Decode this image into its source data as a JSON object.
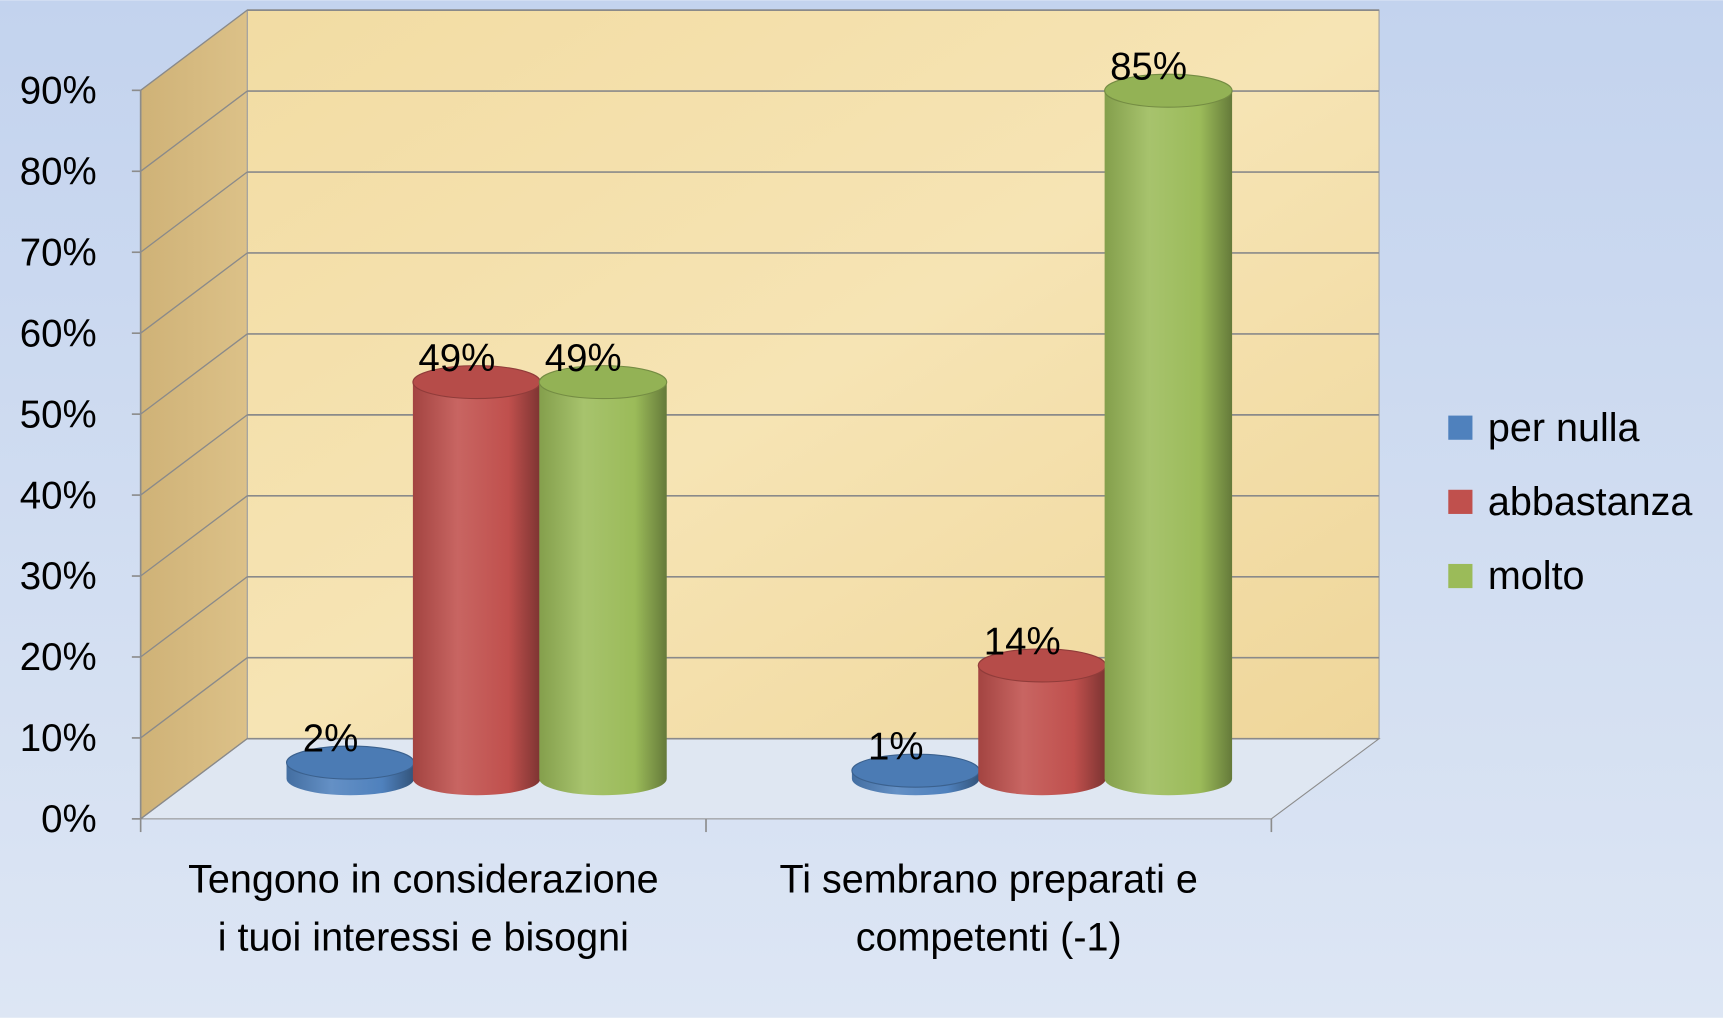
{
  "chart_data": {
    "type": "bar3d",
    "categories": [
      "Tengono in considerazione i tuoi interessi e  bisogni",
      "Ti sembrano preparati e competenti (-1)"
    ],
    "series": [
      {
        "name": "per nulla",
        "color": "#4f81bd",
        "values": [
          2,
          1
        ],
        "value_labels": [
          "2%",
          "1%"
        ]
      },
      {
        "name": "abbastanza",
        "color": "#c0504d",
        "values": [
          49,
          14
        ],
        "value_labels": [
          "49%",
          "14%"
        ]
      },
      {
        "name": "molto",
        "color": "#9bbb59",
        "values": [
          49,
          85
        ],
        "value_labels": [
          "49%",
          "85%"
        ]
      }
    ],
    "ylim": [
      0,
      90
    ],
    "yticks": [
      {
        "value": 0,
        "label": "0%"
      },
      {
        "value": 10,
        "label": "10%"
      },
      {
        "value": 20,
        "label": "20%"
      },
      {
        "value": 30,
        "label": "30%"
      },
      {
        "value": 40,
        "label": "40%"
      },
      {
        "value": 50,
        "label": "50%"
      },
      {
        "value": 60,
        "label": "60%"
      },
      {
        "value": 70,
        "label": "70%"
      },
      {
        "value": 80,
        "label": "80%"
      },
      {
        "value": 90,
        "label": "90%"
      }
    ],
    "grid": true,
    "legend": "right"
  }
}
